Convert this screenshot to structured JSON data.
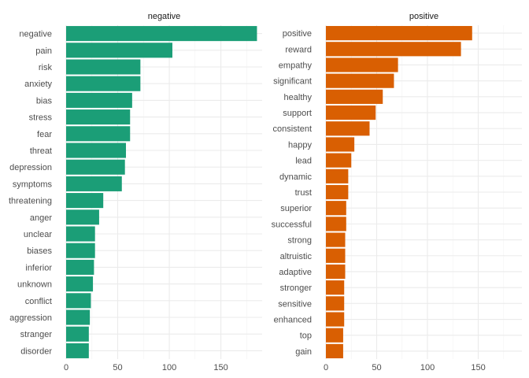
{
  "chart_data": [
    {
      "type": "bar",
      "orientation": "horizontal",
      "title": "negative",
      "color": "#1B9E77",
      "xlim": [
        0,
        190
      ],
      "xticks": [
        0,
        50,
        100,
        150
      ],
      "categories": [
        "negative",
        "pain",
        "risk",
        "anxiety",
        "bias",
        "stress",
        "fear",
        "threat",
        "depression",
        "symptoms",
        "threatening",
        "anger",
        "unclear",
        "biases",
        "inferior",
        "unknown",
        "conflict",
        "aggression",
        "stranger",
        "disorder"
      ],
      "values": [
        185,
        103,
        72,
        72,
        64,
        62,
        62,
        58,
        57,
        54,
        36,
        32,
        28,
        28,
        27,
        26,
        24,
        23,
        22,
        22
      ]
    },
    {
      "type": "bar",
      "orientation": "horizontal",
      "title": "positive",
      "color": "#D95F02",
      "xlim": [
        0,
        193
      ],
      "xticks": [
        0,
        50,
        100,
        150
      ],
      "categories": [
        "positive",
        "reward",
        "empathy",
        "significant",
        "healthy",
        "support",
        "consistent",
        "happy",
        "lead",
        "dynamic",
        "trust",
        "superior",
        "successful",
        "strong",
        "altruistic",
        "adaptive",
        "stronger",
        "sensitive",
        "enhanced",
        "top",
        "gain"
      ],
      "values": [
        144,
        133,
        71,
        67,
        56,
        49,
        43,
        28,
        25,
        22,
        22,
        20,
        20,
        19,
        19,
        19,
        18,
        18,
        18,
        17,
        17
      ]
    }
  ]
}
